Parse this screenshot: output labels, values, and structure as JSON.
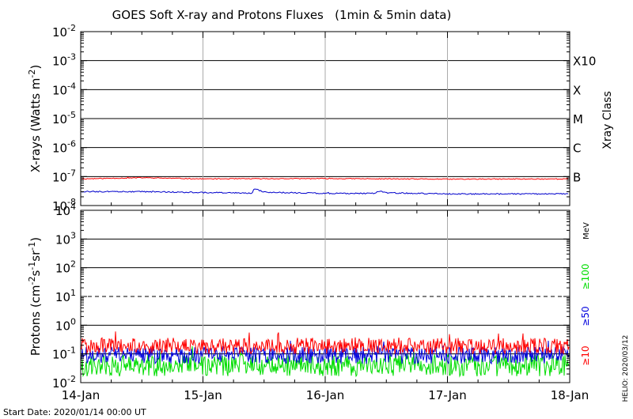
{
  "chart_data": [
    {
      "type": "line",
      "panel": "xrays",
      "title": "GOES Soft X-ray and Protons Fluxes   (1min & 5min data)",
      "ylabel": "X-rays (Watts m",
      "ylabel_sup": "-2",
      "ylabel_close": ")",
      "yscale": "log",
      "ylim_exp": [
        -8,
        -2
      ],
      "y_ticks": [
        {
          "base": "10",
          "exp": "-8"
        },
        {
          "base": "10",
          "exp": "-7"
        },
        {
          "base": "10",
          "exp": "-6"
        },
        {
          "base": "10",
          "exp": "-5"
        },
        {
          "base": "10",
          "exp": "-4"
        },
        {
          "base": "10",
          "exp": "-3"
        },
        {
          "base": "10",
          "exp": "-2"
        }
      ],
      "right_axis_label": "Xray Class",
      "class_labels": [
        {
          "label": "B",
          "exp": -7
        },
        {
          "label": "C",
          "exp": -6
        },
        {
          "label": "M",
          "exp": -5
        },
        {
          "label": "X",
          "exp": -4
        },
        {
          "label": "X10",
          "exp": -3
        }
      ],
      "xlim": [
        "14-Jan",
        "18-Jan"
      ],
      "grid": true,
      "series": [
        {
          "color": "#ff0000",
          "baseline_exp": -7.08,
          "noise": 0.015,
          "trend": [
            [
              0,
              -7.08
            ],
            [
              0.5,
              -7.04
            ],
            [
              1,
              -7.08
            ],
            [
              2,
              -7.07
            ],
            [
              3,
              -7.09
            ],
            [
              4,
              -7.08
            ]
          ]
        },
        {
          "color": "#0000cc",
          "baseline_exp": -7.55,
          "noise": 0.02,
          "trend": [
            [
              0,
              -7.52
            ],
            [
              0.5,
              -7.52
            ],
            [
              1.2,
              -7.56
            ],
            [
              1.4,
              -7.58
            ],
            [
              1.42,
              -7.42
            ],
            [
              1.5,
              -7.54
            ],
            [
              2,
              -7.58
            ],
            [
              2.4,
              -7.58
            ],
            [
              2.45,
              -7.5
            ],
            [
              2.5,
              -7.56
            ],
            [
              3,
              -7.6
            ],
            [
              4,
              -7.6
            ]
          ]
        }
      ]
    },
    {
      "type": "line",
      "panel": "protons",
      "ylabel": "Protons (cm",
      "ylabel_parts": [
        "-2",
        "s",
        "-1",
        "sr",
        "-1"
      ],
      "yscale": "log",
      "ylim_exp": [
        -2,
        4
      ],
      "y_ticks": [
        {
          "base": "10",
          "exp": "-2"
        },
        {
          "base": "10",
          "exp": "-1"
        },
        {
          "base": "10",
          "exp": "0"
        },
        {
          "base": "10",
          "exp": "1"
        },
        {
          "base": "10",
          "exp": "2"
        },
        {
          "base": "10",
          "exp": "3"
        },
        {
          "base": "10",
          "exp": "4"
        }
      ],
      "threshold_exp": 1,
      "x_ticks": [
        "14-Jan",
        "15-Jan",
        "16-Jan",
        "17-Jan",
        "18-Jan"
      ],
      "grid": true,
      "unit_label": "MeV",
      "series": [
        {
          "name": "≥10",
          "color": "#ff0000",
          "baseline_exp": -0.72,
          "noise": 0.28
        },
        {
          "name": "≥50",
          "color": "#0000dd",
          "baseline_exp": -1.05,
          "noise": 0.3
        },
        {
          "name": "≥100",
          "color": "#00dd00",
          "baseline_exp": -1.4,
          "noise": 0.38
        }
      ]
    }
  ],
  "footer": {
    "start_date": "Start Date: 2020/01/14 00:00 UT",
    "source": "HELIO: 2020/03/12"
  }
}
